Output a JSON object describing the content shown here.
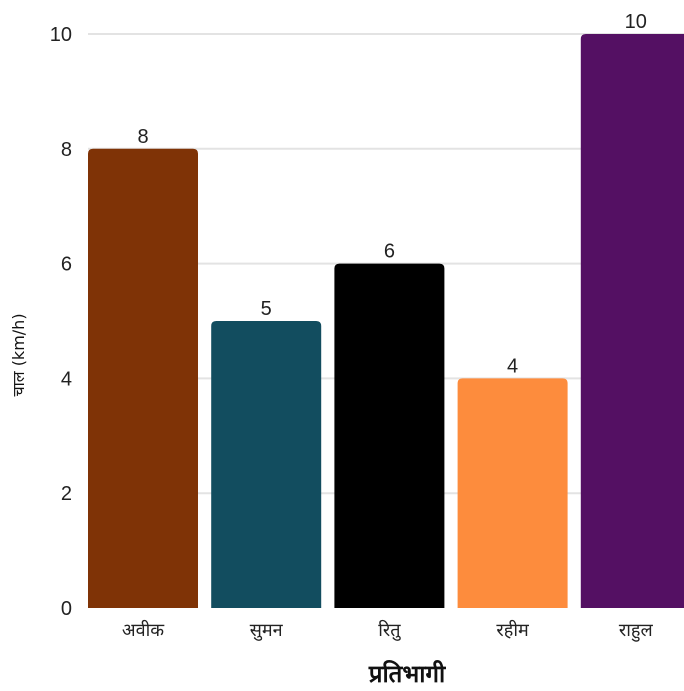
{
  "chart_data": {
    "type": "bar",
    "title": "",
    "xlabel": "प्रतिभागी",
    "ylabel": "चाल (km/h)",
    "categories": [
      "अवीक",
      "सुमन",
      "रितु",
      "रहीम",
      "राहुल"
    ],
    "values": [
      8,
      5,
      6,
      4,
      10
    ],
    "colors": [
      "#7f3306",
      "#124d5f",
      "#000000",
      "#fd8c3d",
      "#541063"
    ],
    "ylim": [
      0,
      10
    ],
    "yticks": [
      0,
      2,
      4,
      6,
      8,
      10
    ],
    "grid": true,
    "legend": "none",
    "data_labels": true
  }
}
